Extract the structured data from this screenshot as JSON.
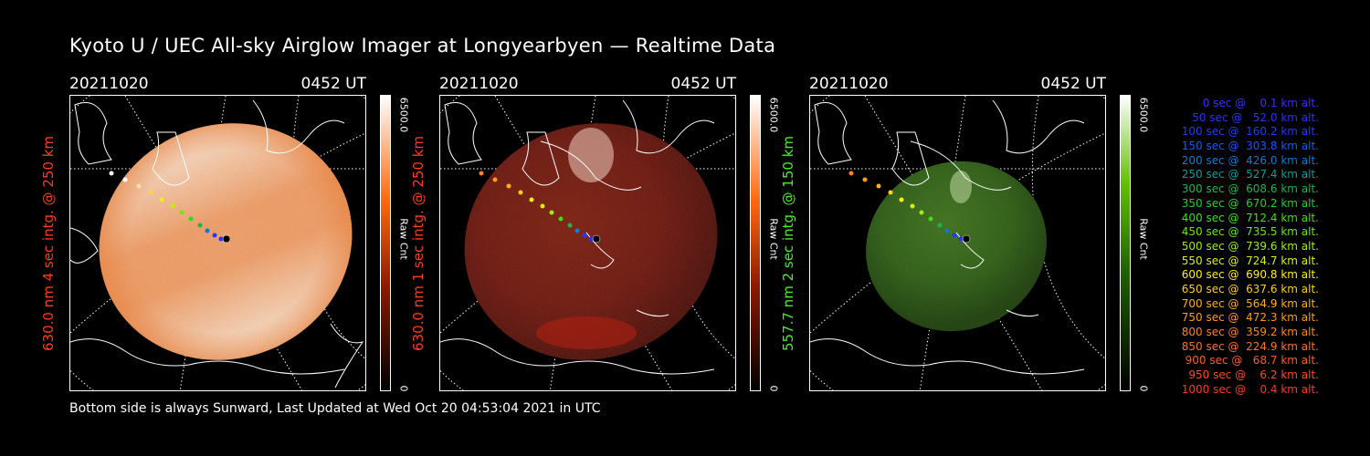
{
  "title": "Kyoto U / UEC All-sky Airglow Imager at Longyearbyen — Realtime Data",
  "footer": "Bottom side is always Sunward, Last Updated at Wed Oct 20 04:53:04 2021 in UTC",
  "panels": [
    {
      "date": "20211020",
      "time": "0452 UT",
      "ylabel": "630.0 nm 4 sec intg. @ 250 km",
      "label_color": "#ff3a1a",
      "cbar_max": "6500.0",
      "cbar_min": "0",
      "cbar_title": "Raw Cnt",
      "cbar_color": "#ff5a00"
    },
    {
      "date": "20211020",
      "time": "0452 UT",
      "ylabel": "630.0 nm 1 sec intg. @ 250 km",
      "label_color": "#ff3a1a",
      "cbar_max": "6500.0",
      "cbar_min": "0",
      "cbar_title": "Raw Cnt",
      "cbar_color": "#ff5a00"
    },
    {
      "date": "20211020",
      "time": "0452 UT",
      "ylabel": "557.7 nm 2 sec intg. @ 150 km",
      "label_color": "#44ee22",
      "cbar_max": "6500.0",
      "cbar_min": "0",
      "cbar_title": "Raw Cnt",
      "cbar_color": "#2a8a00"
    }
  ],
  "legend": [
    {
      "text": "0 sec @    0.1 km alt.",
      "color": "#3a2cff"
    },
    {
      "text": "50 sec @   52.0 km alt.",
      "color": "#2a30ff"
    },
    {
      "text": "100 sec @  160.2 km alt.",
      "color": "#1c3cff"
    },
    {
      "text": "150 sec @  303.8 km alt.",
      "color": "#1058ff"
    },
    {
      "text": "200 sec @  426.0 km alt.",
      "color": "#0a7cd8"
    },
    {
      "text": "250 sec @  527.4 km alt.",
      "color": "#109a9a"
    },
    {
      "text": "300 sec @  608.6 km alt.",
      "color": "#18b850"
    },
    {
      "text": "350 sec @  670.2 km alt.",
      "color": "#22d020"
    },
    {
      "text": "400 sec @  712.4 km alt.",
      "color": "#3ae010"
    },
    {
      "text": "450 sec @  735.5 km alt.",
      "color": "#66e810"
    },
    {
      "text": "500 sec @  739.6 km alt.",
      "color": "#9cee10"
    },
    {
      "text": "550 sec @  724.7 km alt.",
      "color": "#d8f010"
    },
    {
      "text": "600 sec @  690.8 km alt.",
      "color": "#fff010"
    },
    {
      "text": "650 sec @  637.6 km alt.",
      "color": "#ffd010"
    },
    {
      "text": "700 sec @  564.9 km alt.",
      "color": "#ffb010"
    },
    {
      "text": "750 sec @  472.3 km alt.",
      "color": "#ff9a10"
    },
    {
      "text": "800 sec @  359.2 km alt.",
      "color": "#ff8418"
    },
    {
      "text": "850 sec @  224.9 km alt.",
      "color": "#ff7020"
    },
    {
      "text": "900 sec @   68.7 km alt.",
      "color": "#ff5a20"
    },
    {
      "text": "950 sec @    6.2 km alt.",
      "color": "#ff4820"
    },
    {
      "text": "1000 sec @    0.4 km alt.",
      "color": "#ff3820"
    }
  ]
}
